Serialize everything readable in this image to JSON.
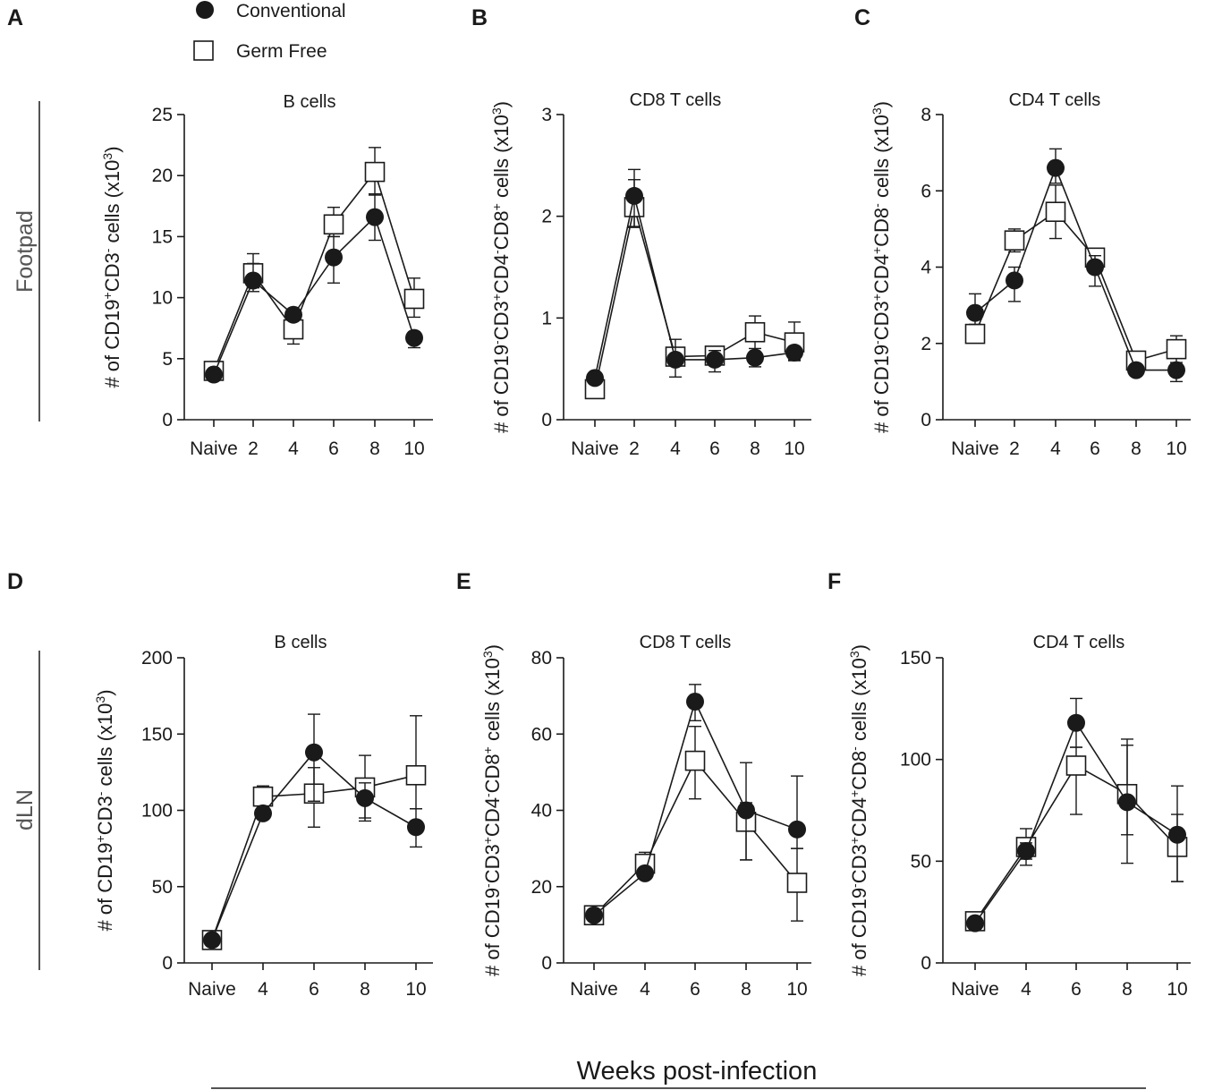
{
  "legend": {
    "conventional": "Conventional",
    "germ_free": "Germ Free"
  },
  "row_labels": {
    "top": "Footpad",
    "bottom": "dLN"
  },
  "common_xlabel": "Weeks post-infection",
  "colors": {
    "ink": "#1a1a1a",
    "open_fill": "#ffffff"
  },
  "chart_data": [
    {
      "panel": "A",
      "type": "line",
      "title": "B cells",
      "ylabel_parts": [
        "# of CD19",
        "+",
        "CD3",
        "-",
        " cells (x10",
        "3",
        ")"
      ],
      "xticks": [
        "Naive",
        "2",
        "4",
        "6",
        "8",
        "10"
      ],
      "ylim": [
        0,
        25
      ],
      "yticks": [
        "0",
        "5",
        "10",
        "15",
        "20",
        "25"
      ],
      "ytick_values": [
        0,
        5,
        10,
        15,
        20,
        25
      ],
      "series": [
        {
          "name": "Conventional",
          "values": [
            3.7,
            11.4,
            8.6,
            13.3,
            16.6,
            6.7
          ],
          "err_low": [
            0.2,
            0.9,
            0.4,
            2.1,
            1.9,
            0.8
          ],
          "err_high": [
            0.2,
            2.2,
            0.3,
            1.7,
            1.9,
            0.5
          ]
        },
        {
          "name": "Germ Free",
          "values": [
            4.0,
            12.0,
            7.4,
            16.0,
            20.3,
            9.9
          ],
          "err_low": [
            0.3,
            1.2,
            1.2,
            1.0,
            1.9,
            1.5
          ],
          "err_high": [
            0.3,
            0.8,
            0.8,
            1.4,
            2.0,
            1.7
          ]
        }
      ]
    },
    {
      "panel": "B",
      "type": "line",
      "title": "CD8 T cells",
      "ylabel_parts": [
        "# of CD19",
        "-",
        "CD3",
        "+",
        "CD4",
        "-",
        "CD8",
        "+",
        " cells (x10",
        "3",
        ")"
      ],
      "xticks": [
        "Naive",
        "2",
        "4",
        "6",
        "8",
        "10"
      ],
      "ylim": [
        0,
        3
      ],
      "yticks": [
        "0",
        "1",
        "2",
        "3"
      ],
      "ytick_values": [
        0,
        1,
        2,
        3
      ],
      "series": [
        {
          "name": "Conventional",
          "values": [
            0.41,
            2.2,
            0.59,
            0.59,
            0.61,
            0.66
          ],
          "err_low": [
            0.04,
            0.3,
            0.17,
            0.12,
            0.09,
            0.08
          ],
          "err_high": [
            0.04,
            0.16,
            0.2,
            0.09,
            0.09,
            0.06
          ]
        },
        {
          "name": "Germ Free",
          "values": [
            0.3,
            2.09,
            0.62,
            0.63,
            0.86,
            0.76
          ],
          "err_low": [
            0.03,
            0.2,
            0.07,
            0.05,
            0.2,
            0.17
          ],
          "err_high": [
            0.03,
            0.37,
            0.06,
            0.06,
            0.16,
            0.2
          ]
        }
      ]
    },
    {
      "panel": "C",
      "type": "line",
      "title": "CD4 T cells",
      "ylabel_parts": [
        "# of CD19",
        "-",
        "CD3",
        "+",
        "CD4",
        "+",
        "CD8",
        "-",
        " cells (x10",
        "3",
        ")"
      ],
      "xticks": [
        "Naive",
        "2",
        "4",
        "6",
        "8",
        "10"
      ],
      "ylim": [
        0,
        8
      ],
      "yticks": [
        "0",
        "2",
        "4",
        "6",
        "8"
      ],
      "ytick_values": [
        0,
        2,
        4,
        6,
        8
      ],
      "series": [
        {
          "name": "Conventional",
          "values": [
            2.8,
            3.65,
            6.6,
            4.0,
            1.3,
            1.3
          ],
          "err_low": [
            0.3,
            0.55,
            0.4,
            0.5,
            0.1,
            0.3
          ],
          "err_high": [
            0.5,
            0.35,
            0.5,
            0.3,
            0.1,
            0.2
          ]
        },
        {
          "name": "Germ Free",
          "values": [
            2.25,
            4.7,
            5.45,
            4.25,
            1.55,
            1.85
          ],
          "err_low": [
            0.2,
            0.3,
            0.7,
            0.3,
            0.3,
            0.6
          ],
          "err_high": [
            0.2,
            0.3,
            0.7,
            0.2,
            0.1,
            0.35
          ]
        }
      ]
    },
    {
      "panel": "D",
      "type": "line",
      "title": "B cells",
      "ylabel_parts": [
        "# of CD19",
        "+",
        "CD3",
        "-",
        " cells (x10",
        "3",
        ")"
      ],
      "xticks": [
        "Naive",
        "4",
        "6",
        "8",
        "10"
      ],
      "ylim": [
        0,
        200
      ],
      "yticks": [
        "0",
        "50",
        "100",
        "150",
        "200"
      ],
      "ytick_values": [
        0,
        50,
        100,
        150,
        200
      ],
      "series": [
        {
          "name": "Conventional",
          "values": [
            15,
            98,
            138,
            108,
            89
          ],
          "err_low": [
            2,
            3,
            32,
            15,
            13
          ],
          "err_high": [
            2,
            3,
            25,
            10,
            12
          ]
        },
        {
          "name": "Germ Free",
          "values": [
            15,
            109,
            111,
            115,
            123
          ],
          "err_low": [
            2,
            4,
            22,
            20,
            22
          ],
          "err_high": [
            2,
            7,
            17,
            21,
            39
          ]
        }
      ]
    },
    {
      "panel": "E",
      "type": "line",
      "title": "CD8 T cells",
      "ylabel_parts": [
        "# of CD19",
        "-",
        "CD3",
        "+",
        "CD4",
        "-",
        "CD8",
        "+",
        " cells (x10",
        "3",
        ")"
      ],
      "xticks": [
        "Naive",
        "4",
        "6",
        "8",
        "10"
      ],
      "ylim": [
        0,
        80
      ],
      "yticks": [
        "0",
        "20",
        "40",
        "60",
        "80"
      ],
      "ytick_values": [
        0,
        20,
        40,
        60,
        80
      ],
      "series": [
        {
          "name": "Conventional",
          "values": [
            12.5,
            23.5,
            68.5,
            40,
            35
          ],
          "err_low": [
            1,
            1,
            5,
            13,
            5
          ],
          "err_high": [
            1,
            1,
            4.5,
            12.5,
            14
          ]
        },
        {
          "name": "Germ Free",
          "values": [
            12.5,
            26,
            53,
            37,
            21
          ],
          "err_low": [
            1,
            2,
            10,
            10,
            10
          ],
          "err_high": [
            1,
            3,
            9,
            5,
            9
          ]
        }
      ]
    },
    {
      "panel": "F",
      "type": "line",
      "title": "CD4 T cells",
      "ylabel_parts": [
        "# of CD19",
        "-",
        "CD3",
        "+",
        "CD4",
        "+",
        "CD8",
        "-",
        " cells (x10",
        "3",
        ")"
      ],
      "xticks": [
        "Naive",
        "4",
        "6",
        "8",
        "10"
      ],
      "ylim": [
        0,
        150
      ],
      "yticks": [
        "0",
        "50",
        "100",
        "150"
      ],
      "ytick_values": [
        0,
        50,
        100,
        150
      ],
      "series": [
        {
          "name": "Conventional",
          "values": [
            19.5,
            55,
            118,
            79,
            63
          ],
          "err_low": [
            1.5,
            4,
            12,
            16,
            23
          ],
          "err_high": [
            1.5,
            4,
            12,
            31,
            10
          ]
        },
        {
          "name": "Germ Free",
          "values": [
            20.5,
            57,
            97,
            83,
            57
          ],
          "err_low": [
            2,
            9,
            24,
            34,
            17
          ],
          "err_high": [
            2,
            9,
            9,
            24,
            30
          ]
        }
      ]
    }
  ]
}
